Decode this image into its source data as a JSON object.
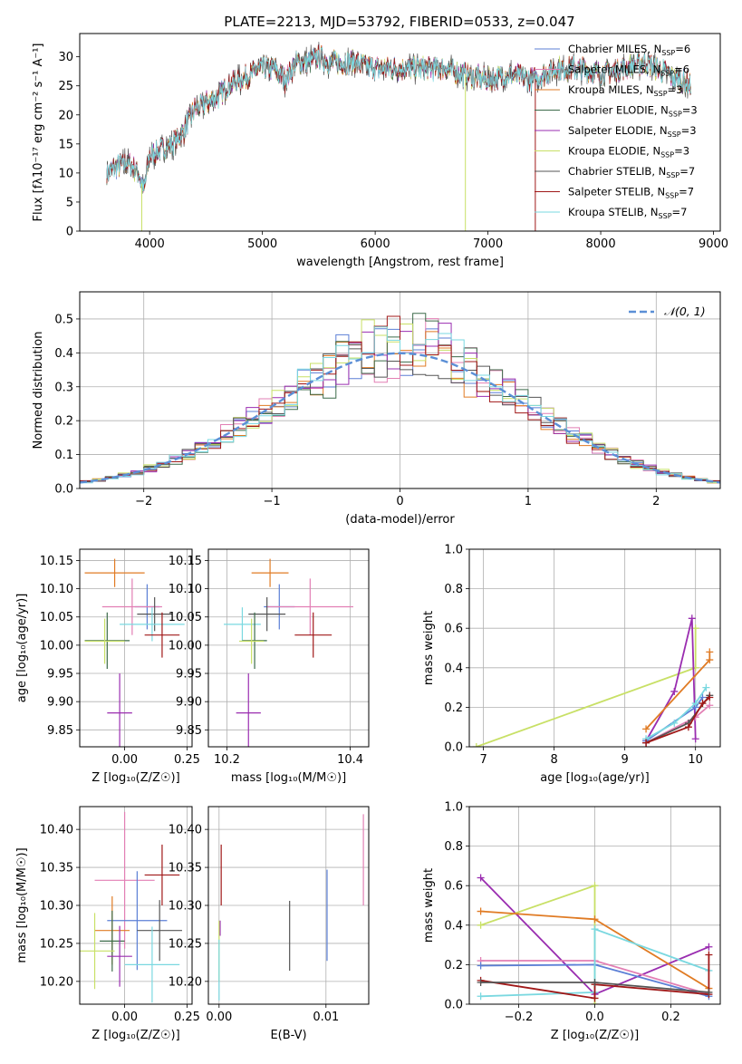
{
  "figure_title": "PLATE=2213, MJD=53792, FIBERID=0533, z=0.047",
  "colors": {
    "chabrier_miles": "#5b7fd6",
    "salpeter_miles": "#e27fb4",
    "kroupa_miles": "#e07b24",
    "chabrier_elodie": "#3c6b4a",
    "salpeter_elodie": "#9a2db0",
    "kroupa_elodie": "#c8e066",
    "chabrier_stelib": "#555555",
    "salpeter_stelib": "#a01818",
    "kroupa_stelib": "#7ad8e0",
    "normal": "#5b8fd6"
  },
  "chart_data": [
    {
      "type": "line",
      "id": "spectrum",
      "xlabel": "wavelength [Angstrom, rest frame]",
      "ylabel": "Flux [fλ10⁻¹⁷ erg cm⁻² s⁻¹ A⁻¹]",
      "xlim": [
        3380,
        9060
      ],
      "ylim": [
        0,
        34
      ],
      "xticks": [
        "4000",
        "5000",
        "6000",
        "7000",
        "8000",
        "9000"
      ],
      "yticks": [
        "0",
        "5",
        "10",
        "15",
        "20",
        "25",
        "30"
      ],
      "grid": false,
      "legend_position": "top-right",
      "series": [
        {
          "name": "Chabrier MILES, N_SSP=6",
          "key": "chabrier_miles",
          "label_base": "Chabrier MILES, N",
          "label_sub": "SSP",
          "label_tail": "=6"
        },
        {
          "name": "Salpeter MILES, N_SSP=6",
          "key": "salpeter_miles",
          "label_base": "Salpeter MILES, N",
          "label_sub": "SSP",
          "label_tail": "=6"
        },
        {
          "name": "Kroupa MILES, N_SSP=3",
          "key": "kroupa_miles",
          "label_base": "Kroupa MILES, N",
          "label_sub": "SSP",
          "label_tail": "=3"
        },
        {
          "name": "Chabrier ELODIE, N_SSP=3",
          "key": "chabrier_elodie",
          "label_base": "Chabrier ELODIE, N",
          "label_sub": "SSP",
          "label_tail": "=3"
        },
        {
          "name": "Salpeter ELODIE, N_SSP=3",
          "key": "salpeter_elodie",
          "label_base": "Salpeter ELODIE, N",
          "label_sub": "SSP",
          "label_tail": "=3"
        },
        {
          "name": "Kroupa ELODIE, N_SSP=3",
          "key": "kroupa_elodie",
          "label_base": "Kroupa ELODIE, N",
          "label_sub": "SSP",
          "label_tail": "=3"
        },
        {
          "name": "Chabrier STELIB, N_SSP=7",
          "key": "chabrier_stelib",
          "label_base": "Chabrier STELIB, N",
          "label_sub": "SSP",
          "label_tail": "=7"
        },
        {
          "name": "Salpeter STELIB, N_SSP=7",
          "key": "salpeter_stelib",
          "label_base": "Salpeter STELIB, N",
          "label_sub": "SSP",
          "label_tail": "=7"
        },
        {
          "name": "Kroupa STELIB, N_SSP=7",
          "key": "kroupa_stelib",
          "label_base": "Kroupa STELIB, N",
          "label_sub": "SSP",
          "label_tail": "=7"
        }
      ],
      "continuum": [
        [
          3620,
          10
        ],
        [
          3700,
          11
        ],
        [
          3800,
          12
        ],
        [
          3900,
          10
        ],
        [
          3950,
          7
        ],
        [
          4000,
          13
        ],
        [
          4100,
          14
        ],
        [
          4200,
          15
        ],
        [
          4300,
          17
        ],
        [
          4400,
          21
        ],
        [
          4500,
          22
        ],
        [
          4600,
          23
        ],
        [
          4700,
          25
        ],
        [
          4800,
          26
        ],
        [
          4900,
          27
        ],
        [
          5000,
          28
        ],
        [
          5100,
          28
        ],
        [
          5200,
          26
        ],
        [
          5300,
          29
        ],
        [
          5400,
          29
        ],
        [
          5500,
          30
        ],
        [
          5600,
          29
        ],
        [
          5800,
          29
        ],
        [
          6000,
          28
        ],
        [
          6200,
          28
        ],
        [
          6400,
          28
        ],
        [
          6600,
          28
        ],
        [
          6800,
          27
        ],
        [
          7000,
          26
        ],
        [
          7200,
          27
        ],
        [
          7400,
          26
        ],
        [
          7600,
          28
        ],
        [
          7800,
          28
        ],
        [
          8000,
          27
        ],
        [
          8200,
          28
        ],
        [
          8400,
          29
        ],
        [
          8600,
          27
        ],
        [
          8800,
          25
        ]
      ],
      "dips": [
        {
          "x": 3930,
          "y": 0,
          "key": "kroupa_elodie"
        },
        {
          "x": 6800,
          "y": 0,
          "key": "kroupa_elodie"
        },
        {
          "x": 7420,
          "y": 0,
          "key": "salpeter_stelib"
        }
      ]
    },
    {
      "type": "line",
      "id": "residuals",
      "xlabel": "(data-model)/error",
      "ylabel": "Normed distribution",
      "xlim": [
        -2.5,
        2.5
      ],
      "ylim": [
        0,
        0.58
      ],
      "xticks": [
        "−2",
        "−1",
        "0",
        "1",
        "2"
      ],
      "yticks": [
        "0.0",
        "0.1",
        "0.2",
        "0.3",
        "0.4",
        "0.5"
      ],
      "grid": true,
      "legend_position": "top-right",
      "legend": "𝒩(0, 1)",
      "bin_width": 0.1
    },
    {
      "type": "scatter",
      "id": "age_vs_Z",
      "xlabel": "Z [log₁₀(Z/Z☉)]",
      "ylabel": "age  [log₁₀(age/yr)]",
      "xlim": [
        -0.18,
        0.27
      ],
      "ylim": [
        9.82,
        10.17
      ],
      "xticks": [
        "0.00",
        "0.25"
      ],
      "yticks": [
        "9.85",
        "9.90",
        "9.95",
        "10.00",
        "10.05",
        "10.10",
        "10.15"
      ],
      "grid": true,
      "points": [
        {
          "key": "kroupa_miles",
          "x": -0.04,
          "y": 10.128,
          "xerr": 0.12,
          "yerr": 0.025
        },
        {
          "key": "chabrier_miles",
          "x": 0.09,
          "y": 10.068,
          "xerr": 0.05,
          "yerr": 0.04
        },
        {
          "key": "salpeter_miles",
          "x": 0.03,
          "y": 10.068,
          "xerr": 0.12,
          "yerr": 0.05
        },
        {
          "key": "chabrier_stelib",
          "x": 0.12,
          "y": 10.055,
          "xerr": 0.07,
          "yerr": 0.03
        },
        {
          "key": "kroupa_stelib",
          "x": 0.11,
          "y": 10.037,
          "xerr": 0.13,
          "yerr": 0.03
        },
        {
          "key": "chabrier_elodie",
          "x": -0.07,
          "y": 10.008,
          "xerr": 0.09,
          "yerr": 0.05
        },
        {
          "key": "kroupa_elodie",
          "x": -0.08,
          "y": 10.007,
          "xerr": 0.08,
          "yerr": 0.04
        },
        {
          "key": "salpeter_stelib",
          "x": 0.15,
          "y": 10.018,
          "xerr": 0.07,
          "yerr": 0.04
        },
        {
          "key": "salpeter_elodie",
          "x": -0.02,
          "y": 9.88,
          "xerr": 0.05,
          "yerr": 0.07
        }
      ]
    },
    {
      "type": "scatter",
      "id": "age_vs_mass",
      "xlabel": "mass [log₁₀(M/M☉)]",
      "ylabel": "",
      "xlim": [
        10.17,
        10.43
      ],
      "ylim": [
        9.82,
        10.17
      ],
      "xticks": [
        "10.2",
        "10.4"
      ],
      "yticks": [
        "9.85",
        "9.90",
        "9.95",
        "10.00",
        "10.05",
        "10.10",
        "10.15"
      ],
      "grid": true,
      "points": [
        {
          "key": "kroupa_miles",
          "x": 10.27,
          "y": 10.128,
          "xerr": 0.03,
          "yerr": 0.025
        },
        {
          "key": "chabrier_miles",
          "x": 10.285,
          "y": 10.068,
          "xerr": 0.025,
          "yerr": 0.04
        },
        {
          "key": "salpeter_miles",
          "x": 10.335,
          "y": 10.068,
          "xerr": 0.07,
          "yerr": 0.05
        },
        {
          "key": "chabrier_stelib",
          "x": 10.265,
          "y": 10.055,
          "xerr": 0.03,
          "yerr": 0.03
        },
        {
          "key": "kroupa_stelib",
          "x": 10.225,
          "y": 10.037,
          "xerr": 0.03,
          "yerr": 0.03
        },
        {
          "key": "chabrier_elodie",
          "x": 10.245,
          "y": 10.008,
          "xerr": 0.02,
          "yerr": 0.05
        },
        {
          "key": "kroupa_elodie",
          "x": 10.24,
          "y": 10.007,
          "xerr": 0.02,
          "yerr": 0.04
        },
        {
          "key": "salpeter_stelib",
          "x": 10.34,
          "y": 10.018,
          "xerr": 0.03,
          "yerr": 0.04
        },
        {
          "key": "salpeter_elodie",
          "x": 10.235,
          "y": 9.88,
          "xerr": 0.02,
          "yerr": 0.07
        }
      ]
    },
    {
      "type": "line",
      "id": "weight_vs_age",
      "xlabel": "age  [log₁₀(age/yr)]",
      "ylabel": "mass weight",
      "xlim": [
        6.8,
        10.35
      ],
      "ylim": [
        0,
        1.0
      ],
      "xticks": [
        "7",
        "8",
        "9",
        "10"
      ],
      "yticks": [
        "0.0",
        "0.2",
        "0.4",
        "0.6",
        "0.8",
        "1.0"
      ],
      "grid": true,
      "series": [
        {
          "key": "kroupa_elodie",
          "points": [
            [
              6.9,
              0.0
            ],
            [
              10.0,
              0.4
            ],
            [
              10.0,
              0.6
            ]
          ]
        },
        {
          "key": "salpeter_elodie",
          "points": [
            [
              9.3,
              0.03
            ],
            [
              9.7,
              0.28
            ],
            [
              9.95,
              0.65
            ],
            [
              10.0,
              0.04
            ]
          ]
        },
        {
          "key": "kroupa_miles",
          "points": [
            [
              9.3,
              0.09
            ],
            [
              10.2,
              0.44
            ],
            [
              10.2,
              0.48
            ]
          ]
        },
        {
          "key": "chabrier_miles",
          "points": [
            [
              9.3,
              0.03
            ],
            [
              10.0,
              0.2
            ],
            [
              10.1,
              0.25
            ]
          ]
        },
        {
          "key": "salpeter_miles",
          "points": [
            [
              9.3,
              0.02
            ],
            [
              10.0,
              0.15
            ],
            [
              10.2,
              0.21
            ]
          ]
        },
        {
          "key": "kroupa_stelib",
          "points": [
            [
              9.3,
              0.04
            ],
            [
              9.7,
              0.12
            ],
            [
              10.0,
              0.22
            ],
            [
              10.15,
              0.3
            ]
          ]
        },
        {
          "key": "chabrier_stelib",
          "points": [
            [
              9.3,
              0.02
            ],
            [
              9.9,
              0.12
            ],
            [
              10.2,
              0.26
            ]
          ]
        },
        {
          "key": "salpeter_stelib",
          "points": [
            [
              9.3,
              0.02
            ],
            [
              9.9,
              0.1
            ],
            [
              10.1,
              0.22
            ],
            [
              10.2,
              0.25
            ]
          ]
        }
      ]
    },
    {
      "type": "scatter",
      "id": "mass_vs_Z",
      "xlabel": "Z [log₁₀(Z/Z☉)]",
      "ylabel": "mass [log₁₀(M/M☉)]",
      "xlim": [
        -0.18,
        0.27
      ],
      "ylim": [
        10.17,
        10.43
      ],
      "xticks": [
        "0.00",
        "0.25"
      ],
      "yticks": [
        "10.20",
        "10.25",
        "10.30",
        "10.35",
        "10.40"
      ],
      "grid": true,
      "points": [
        {
          "key": "salpeter_stelib",
          "x": 0.15,
          "y": 10.34,
          "xerr": 0.07,
          "yerr": 0.04
        },
        {
          "key": "salpeter_miles",
          "x": 0.0,
          "y": 10.333,
          "xerr": 0.12,
          "yerr": 0.09
        },
        {
          "key": "chabrier_miles",
          "x": 0.05,
          "y": 10.28,
          "xerr": 0.12,
          "yerr": 0.065
        },
        {
          "key": "kroupa_miles",
          "x": -0.05,
          "y": 10.267,
          "xerr": 0.07,
          "yerr": 0.045
        },
        {
          "key": "chabrier_stelib",
          "x": 0.14,
          "y": 10.267,
          "xerr": 0.09,
          "yerr": 0.04
        },
        {
          "key": "chabrier_elodie",
          "x": -0.05,
          "y": 10.253,
          "xerr": 0.05,
          "yerr": 0.04
        },
        {
          "key": "kroupa_elodie",
          "x": -0.12,
          "y": 10.24,
          "xerr": 0.08,
          "yerr": 0.05
        },
        {
          "key": "salpeter_elodie",
          "x": -0.02,
          "y": 10.233,
          "xerr": 0.05,
          "yerr": 0.04
        },
        {
          "key": "kroupa_stelib",
          "x": 0.11,
          "y": 10.222,
          "xerr": 0.11,
          "yerr": 0.05
        }
      ]
    },
    {
      "type": "scatter",
      "id": "mass_vs_ebv",
      "xlabel": "E(B-V)",
      "ylabel": "",
      "xlim": [
        -0.001,
        0.014
      ],
      "ylim": [
        10.17,
        10.43
      ],
      "xticks": [
        "0.00",
        "0.01"
      ],
      "yticks": [
        "10.20",
        "10.25",
        "10.30",
        "10.35",
        "10.40"
      ],
      "grid": true,
      "points": [
        {
          "key": "salpeter_stelib",
          "x": 0.0002,
          "y": 10.34,
          "xerr": 0,
          "yerr": 0.04
        },
        {
          "key": "salpeter_elodie",
          "x": 0.0001,
          "y": 10.27,
          "xerr": 0,
          "yerr": 0.01
        },
        {
          "key": "kroupa_elodie",
          "x": 0.0,
          "y": 10.24,
          "xerr": 0,
          "yerr": 0.04
        },
        {
          "key": "kroupa_stelib",
          "x": 0.0,
          "y": 10.215,
          "xerr": 0,
          "yerr": 0.04
        },
        {
          "key": "chabrier_stelib",
          "x": 0.0066,
          "y": 10.26,
          "xerr": 0,
          "yerr": 0.046
        },
        {
          "key": "chabrier_miles",
          "x": 0.0101,
          "y": 10.287,
          "xerr": 0,
          "yerr": 0.06
        },
        {
          "key": "salpeter_miles",
          "x": 0.0135,
          "y": 10.36,
          "xerr": 0,
          "yerr": 0.06
        }
      ]
    },
    {
      "type": "line",
      "id": "weight_vs_Z",
      "xlabel": "Z [log₁₀(Z/Z☉)]",
      "ylabel": "mass weight",
      "xlim": [
        -0.33,
        0.33
      ],
      "ylim": [
        0,
        1.0
      ],
      "xticks": [
        "−0.2",
        "0.0",
        "0.2"
      ],
      "yticks": [
        "0.0",
        "0.2",
        "0.4",
        "0.6",
        "0.8",
        "1.0"
      ],
      "grid": true,
      "series": [
        {
          "key": "salpeter_elodie",
          "points": [
            [
              -0.3,
              0.64
            ],
            [
              0.0,
              0.05
            ],
            [
              0.3,
              0.29
            ]
          ]
        },
        {
          "key": "kroupa_elodie",
          "points": [
            [
              -0.3,
              0.4
            ],
            [
              0.0,
              0.6
            ],
            [
              0.0,
              0.0
            ]
          ]
        },
        {
          "key": "kroupa_miles",
          "points": [
            [
              -0.3,
              0.47
            ],
            [
              0.0,
              0.43
            ],
            [
              0.3,
              0.08
            ]
          ]
        },
        {
          "key": "salpeter_miles",
          "points": [
            [
              -0.3,
              0.22
            ],
            [
              0.0,
              0.22
            ],
            [
              0.3,
              0.05
            ]
          ]
        },
        {
          "key": "chabrier_miles",
          "points": [
            [
              -0.3,
              0.195
            ],
            [
              0.0,
              0.2
            ],
            [
              0.3,
              0.04
            ]
          ]
        },
        {
          "key": "kroupa_stelib",
          "points": [
            [
              -0.3,
              0.04
            ],
            [
              0.0,
              0.06
            ],
            [
              0.0,
              0.38
            ],
            [
              0.3,
              0.17
            ]
          ]
        },
        {
          "key": "salpeter_stelib",
          "points": [
            [
              -0.3,
              0.12
            ],
            [
              0.0,
              0.03
            ],
            [
              0.0,
              0.1
            ],
            [
              0.3,
              0.05
            ],
            [
              0.3,
              0.25
            ]
          ]
        },
        {
          "key": "chabrier_stelib",
          "points": [
            [
              -0.3,
              0.11
            ],
            [
              0.0,
              0.11
            ],
            [
              0.3,
              0.06
            ]
          ]
        }
      ]
    }
  ]
}
